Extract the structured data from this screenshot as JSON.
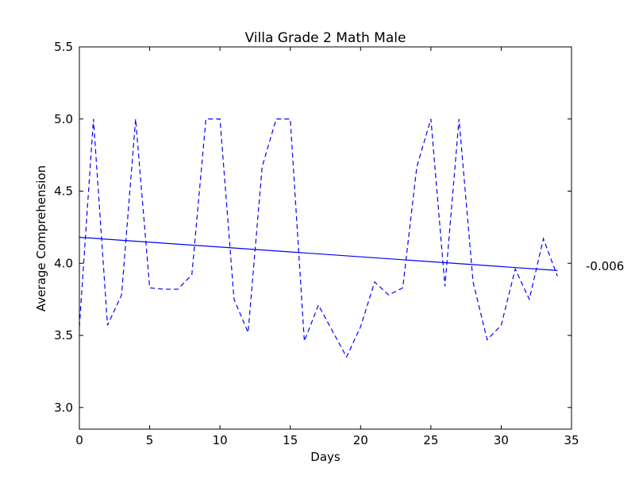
{
  "chart_data": {
    "type": "line",
    "title": "Villa Grade 2 Math Male",
    "xlabel": "Days",
    "ylabel": "Average Comprehension",
    "xlim": [
      0,
      35
    ],
    "ylim": [
      2.85,
      5.5
    ],
    "xticks": [
      "0",
      "5",
      "10",
      "15",
      "20",
      "25",
      "30",
      "35"
    ],
    "yticks": [
      "3.0",
      "3.5",
      "4.0",
      "4.5",
      "5.0",
      "5.5"
    ],
    "grid": false,
    "annotation": "-0.006",
    "series": [
      {
        "style": "dashed",
        "color": "#0000ff",
        "x": [
          0,
          1,
          2,
          3,
          4,
          5,
          6,
          7,
          8,
          9,
          10,
          11,
          12,
          13,
          14,
          15,
          16,
          17,
          18,
          19,
          20,
          21,
          22,
          23,
          24,
          25,
          26,
          27,
          28,
          29,
          30,
          31,
          32,
          33,
          34
        ],
        "y": [
          3.56,
          5.0,
          3.57,
          3.78,
          5.0,
          3.83,
          3.82,
          3.82,
          3.92,
          5.0,
          5.0,
          3.75,
          3.52,
          4.67,
          5.0,
          5.0,
          3.46,
          3.71,
          3.53,
          3.35,
          3.56,
          3.87,
          3.78,
          3.83,
          4.67,
          5.0,
          3.84,
          5.0,
          3.87,
          3.47,
          3.57,
          3.96,
          3.75,
          4.17,
          3.91
        ]
      },
      {
        "style": "solid",
        "color": "#0000ff",
        "x": [
          0,
          34
        ],
        "y": [
          4.18,
          3.95
        ]
      }
    ]
  }
}
